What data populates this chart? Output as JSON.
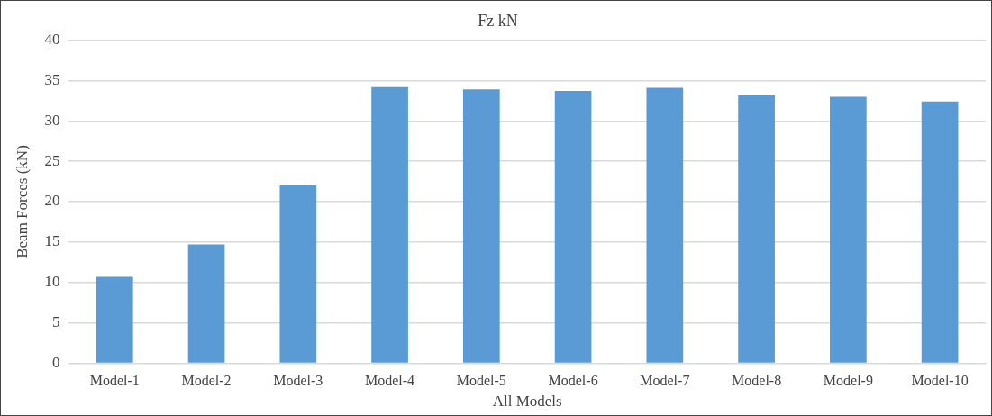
{
  "chart_data": {
    "type": "bar",
    "title": "Fz kN",
    "xlabel": "All Models",
    "ylabel": "Beam Forces (kN)",
    "categories": [
      "Model-1",
      "Model-2",
      "Model-3",
      "Model-4",
      "Model-5",
      "Model-6",
      "Model-7",
      "Model-8",
      "Model-9",
      "Model-10"
    ],
    "values": [
      10.7,
      14.7,
      22.0,
      34.2,
      33.9,
      33.7,
      34.1,
      33.2,
      33.0,
      32.4
    ],
    "color": "#5b9bd5",
    "ylim": [
      0,
      40
    ],
    "yticks": [
      0,
      5,
      10,
      15,
      20,
      25,
      30,
      35,
      40
    ],
    "grid": "y",
    "legend": false
  }
}
